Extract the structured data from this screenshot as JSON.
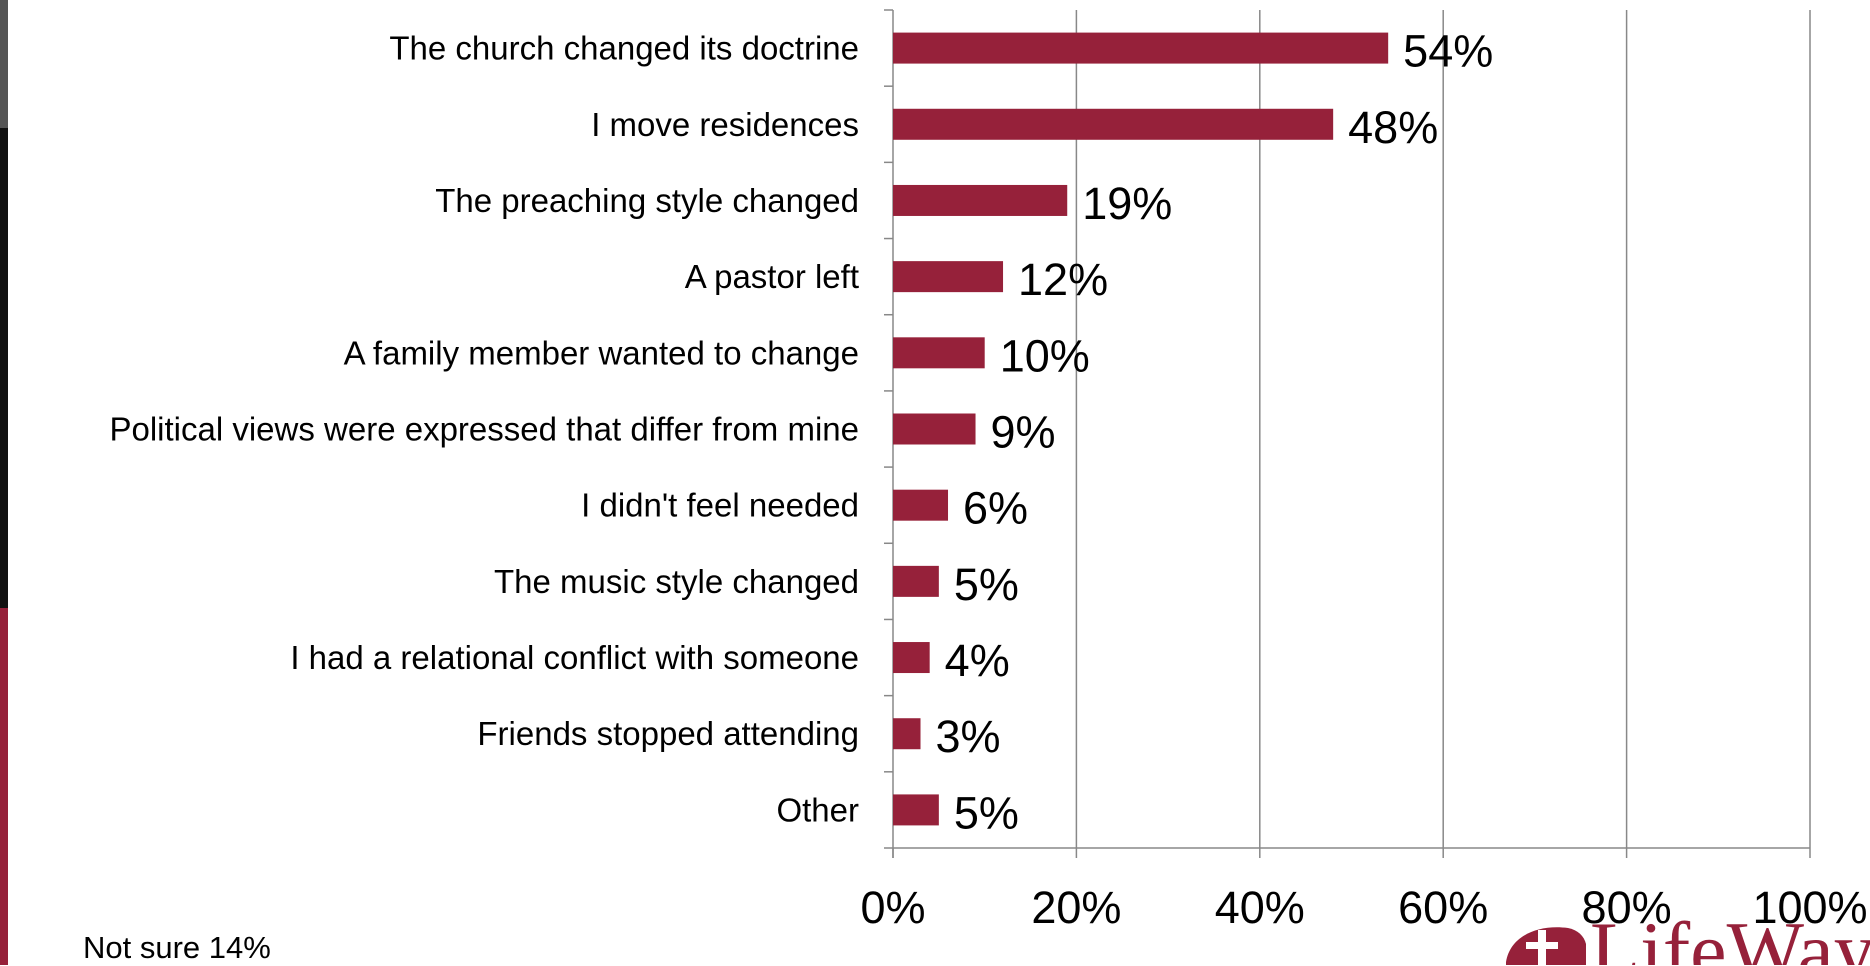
{
  "chart_data": {
    "type": "bar",
    "orientation": "horizontal",
    "categories": [
      "The church changed its doctrine",
      "I move residences",
      "The preaching style changed",
      "A pastor left",
      "A family member wanted to change",
      "Political views were expressed that differ from mine",
      "I didn't feel needed",
      "The music style changed",
      "I had a relational conflict with someone",
      "Friends stopped attending",
      "Other"
    ],
    "values": [
      54,
      48,
      19,
      12,
      10,
      9,
      6,
      5,
      4,
      3,
      5
    ],
    "data_labels": [
      "54%",
      "48%",
      "19%",
      "12%",
      "10%",
      "9%",
      "6%",
      "5%",
      "4%",
      "3%",
      "5%"
    ],
    "xlim": [
      0,
      100
    ],
    "x_ticks": [
      0,
      20,
      40,
      60,
      80,
      100
    ],
    "x_tick_labels": [
      "0%",
      "20%",
      "40%",
      "60%",
      "80%",
      "100%"
    ],
    "grid": "vertical",
    "legend": "none",
    "bar_color": "#96213a",
    "grid_color": "#888888"
  },
  "footnote": "Not sure 14%",
  "logo": {
    "text": "LifeWay",
    "icon": "lifeway-cross-logo-icon",
    "color": "#96213a"
  }
}
